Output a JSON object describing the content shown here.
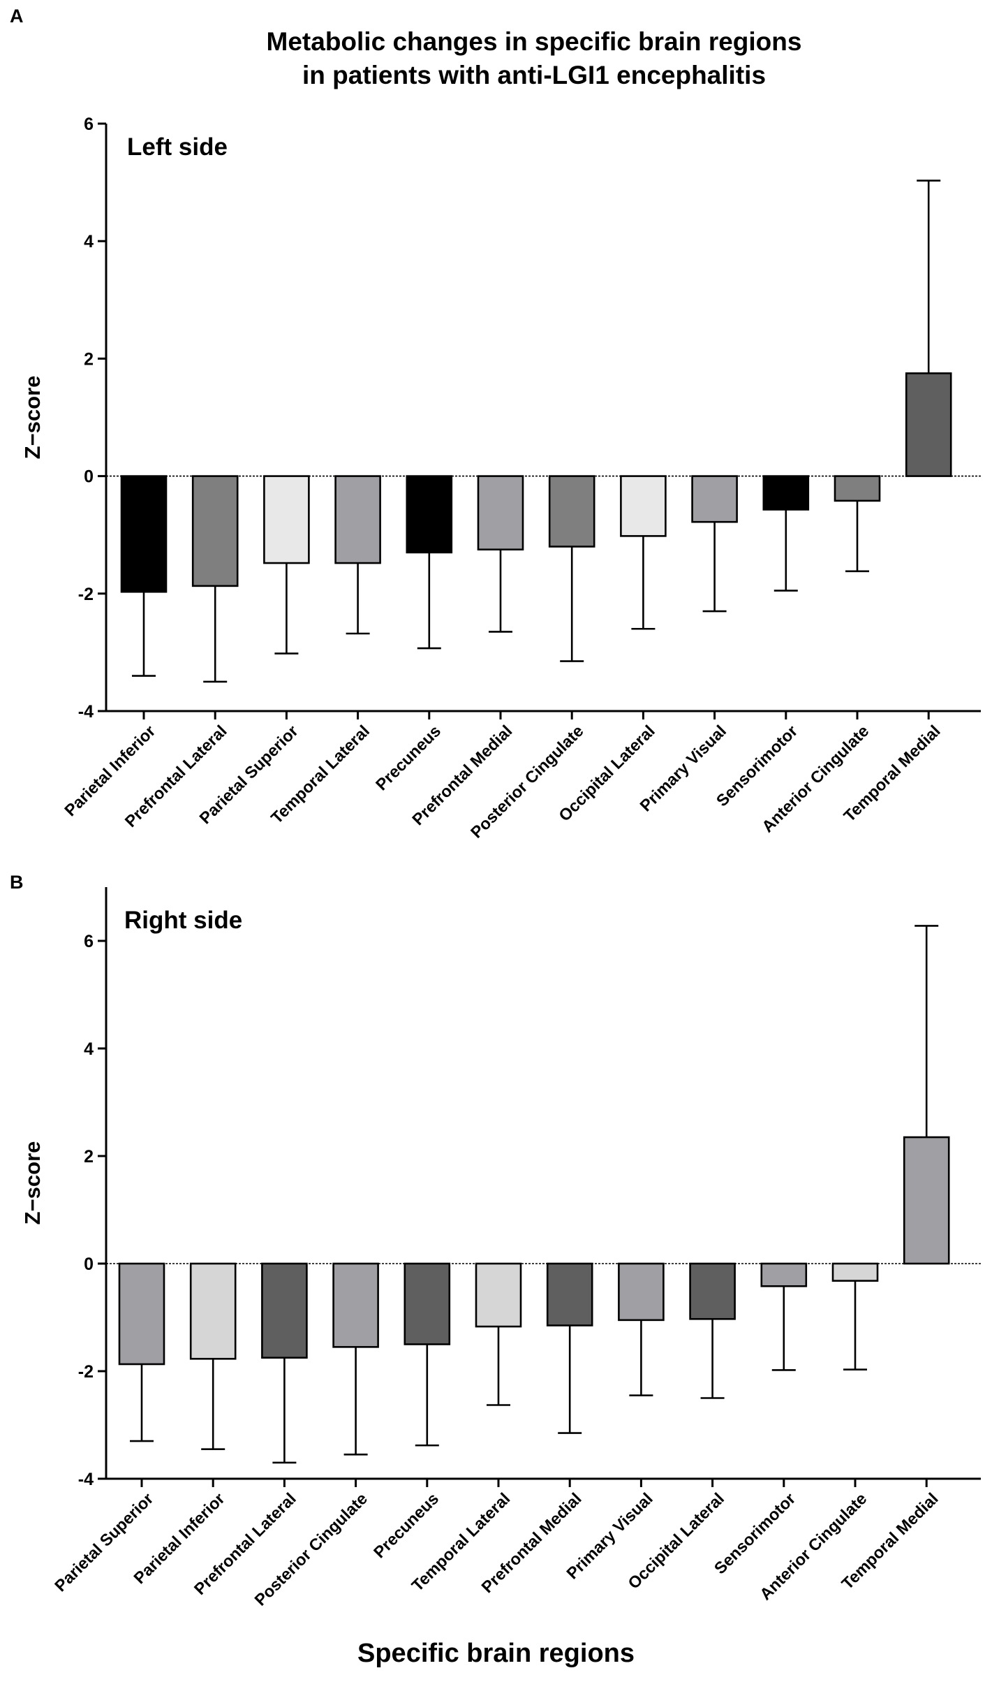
{
  "figure": {
    "title_line1": "Metabolic changes in specific brain regions",
    "title_line2": "in patients with anti-LGI1 encephalitis",
    "xlabel": "Specific brain regions"
  },
  "chart_data": [
    {
      "type": "bar",
      "panel": "A",
      "title": "Left side",
      "ylabel": "Z−score",
      "ylim": [
        -4,
        6
      ],
      "yticks": [
        -4,
        -2,
        0,
        2,
        4,
        6
      ],
      "categories": [
        "Parietal Inferior",
        "Prefrontal Lateral",
        "Parietal Superior",
        "Temporal Lateral",
        "Precuneus",
        "Prefrontal Medial",
        "Posterior Cingulate",
        "Occipital Lateral",
        "Primary Visual",
        "Sensorimotor",
        "Anterior Cingulate",
        "Temporal Medial"
      ],
      "values": [
        -1.97,
        -1.87,
        -1.48,
        -1.48,
        -1.3,
        -1.25,
        -1.2,
        -1.02,
        -0.78,
        -0.57,
        -0.42,
        1.75
      ],
      "error_ends": [
        -3.4,
        -3.5,
        -3.02,
        -2.68,
        -2.93,
        -2.65,
        -3.15,
        -2.6,
        -2.3,
        -1.95,
        -1.62,
        5.03
      ],
      "colors": [
        "#000000",
        "#7f7f7f",
        "#e8e8e8",
        "#a0a0a4",
        "#000000",
        "#a0a0a4",
        "#7f7f7f",
        "#e8e8e8",
        "#a0a0a4",
        "#000000",
        "#7f7f7f",
        "#5f5f5f"
      ]
    },
    {
      "type": "bar",
      "panel": "B",
      "title": "Right side",
      "ylabel": "Z−score",
      "ylim": [
        -4,
        7
      ],
      "yticks": [
        -4,
        -2,
        0,
        2,
        4,
        6
      ],
      "categories": [
        "Parietal Superior",
        "Parietal Inferior",
        "Prefrontal Lateral",
        "Posterior Cingulate",
        "Precuneus",
        "Temporal Lateral",
        "Prefrontal Medial",
        "Primary Visual",
        "Occipital Lateral",
        "Sensorimotor",
        "Anterior Cingulate",
        "Temporal Medial"
      ],
      "values": [
        -1.87,
        -1.77,
        -1.75,
        -1.55,
        -1.5,
        -1.17,
        -1.15,
        -1.05,
        -1.03,
        -0.42,
        -0.32,
        2.35
      ],
      "error_ends": [
        -3.3,
        -3.45,
        -3.7,
        -3.55,
        -3.38,
        -2.63,
        -3.15,
        -2.45,
        -2.5,
        -1.98,
        -1.97,
        6.28
      ],
      "colors": [
        "#a0a0a4",
        "#d6d6d6",
        "#5f5f5f",
        "#a0a0a4",
        "#5f5f5f",
        "#d6d6d6",
        "#5f5f5f",
        "#a0a0a4",
        "#5f5f5f",
        "#a0a0a4",
        "#d6d6d6",
        "#a0a0a4"
      ]
    }
  ]
}
